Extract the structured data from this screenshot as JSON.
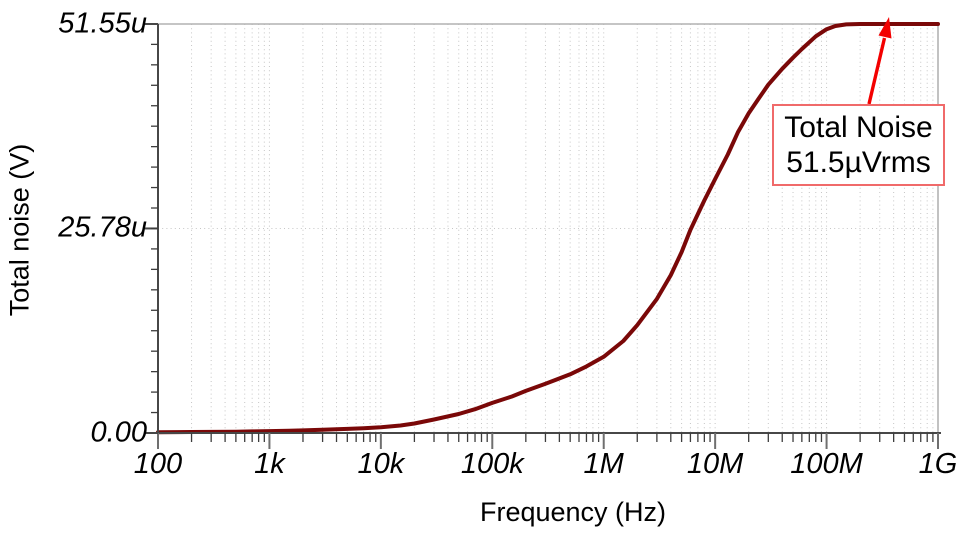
{
  "chart_data": {
    "type": "line",
    "title": "",
    "xlabel": "Frequency (Hz)",
    "ylabel": "Total noise (V)",
    "x_scale": "log",
    "x_range_hz": [
      100,
      1000000000
    ],
    "y_range_uV": [
      0,
      51.55
    ],
    "y_minor_step_uV": 2.578,
    "grid": "dotted light-gray verticals at every log minor; dotted horizontal at mid tick; solid gray top and right borders",
    "legend_position": "none",
    "x_ticks": [
      {
        "f": 100,
        "label": "100"
      },
      {
        "f": 1000,
        "label": "1k"
      },
      {
        "f": 10000,
        "label": "10k"
      },
      {
        "f": 100000,
        "label": "100k"
      },
      {
        "f": 1000000,
        "label": "1M"
      },
      {
        "f": 10000000,
        "label": "10M"
      },
      {
        "f": 100000000,
        "label": "100M"
      },
      {
        "f": 1000000000,
        "label": "1G"
      }
    ],
    "y_ticks": [
      {
        "v": 0,
        "label": "0.00"
      },
      {
        "v": 25.78,
        "label": "25.78u"
      },
      {
        "v": 51.55,
        "label": "51.55u"
      }
    ],
    "series": [
      {
        "name": "Total noise",
        "color": "#7a0808",
        "points_hz_uV": [
          [
            100,
            0.1
          ],
          [
            150,
            0.11
          ],
          [
            200,
            0.12
          ],
          [
            300,
            0.14
          ],
          [
            500,
            0.17
          ],
          [
            700,
            0.2
          ],
          [
            1000,
            0.24
          ],
          [
            1500,
            0.29
          ],
          [
            2000,
            0.33
          ],
          [
            3000,
            0.41
          ],
          [
            5000,
            0.52
          ],
          [
            7000,
            0.61
          ],
          [
            10000,
            0.72
          ],
          [
            15000,
            0.95
          ],
          [
            20000,
            1.2
          ],
          [
            30000,
            1.7
          ],
          [
            50000,
            2.4
          ],
          [
            70000,
            3.0
          ],
          [
            100000,
            3.8
          ],
          [
            150000,
            4.6
          ],
          [
            200000,
            5.3
          ],
          [
            300000,
            6.2
          ],
          [
            500000,
            7.4
          ],
          [
            700000,
            8.4
          ],
          [
            1000000,
            9.6
          ],
          [
            1500000,
            11.6
          ],
          [
            2000000,
            13.6
          ],
          [
            3000000,
            16.9
          ],
          [
            4000000,
            19.9
          ],
          [
            5000000,
            22.8
          ],
          [
            6000000,
            25.6
          ],
          [
            7000000,
            27.6
          ],
          [
            8000000,
            29.3
          ],
          [
            10000000,
            32.0
          ],
          [
            13000000,
            35.1
          ],
          [
            16000000,
            37.9
          ],
          [
            20000000,
            40.3
          ],
          [
            25000000,
            42.3
          ],
          [
            30000000,
            43.9
          ],
          [
            40000000,
            45.9
          ],
          [
            50000000,
            47.3
          ],
          [
            60000000,
            48.4
          ],
          [
            80000000,
            50.0
          ],
          [
            100000000,
            50.9
          ],
          [
            120000000,
            51.3
          ],
          [
            150000000,
            51.5
          ],
          [
            200000000,
            51.55
          ],
          [
            300000000,
            51.55
          ],
          [
            500000000,
            51.55
          ],
          [
            1000000000,
            51.55
          ]
        ]
      }
    ],
    "annotation": {
      "line1": "Total Noise",
      "line2": "51.5µVrms",
      "arrow_points_to_uV": 51.55
    }
  },
  "colors": {
    "curve": "#7a0808",
    "axis": "#474747",
    "plot_border": "#b2b2b2",
    "grid_dots": "#c6c6c6",
    "major_tick": "#6f6f6f",
    "minor_tick": "#3d3d3d",
    "arrow": "#f30000",
    "callout_border": "#f06a6a",
    "text": "#000000"
  }
}
